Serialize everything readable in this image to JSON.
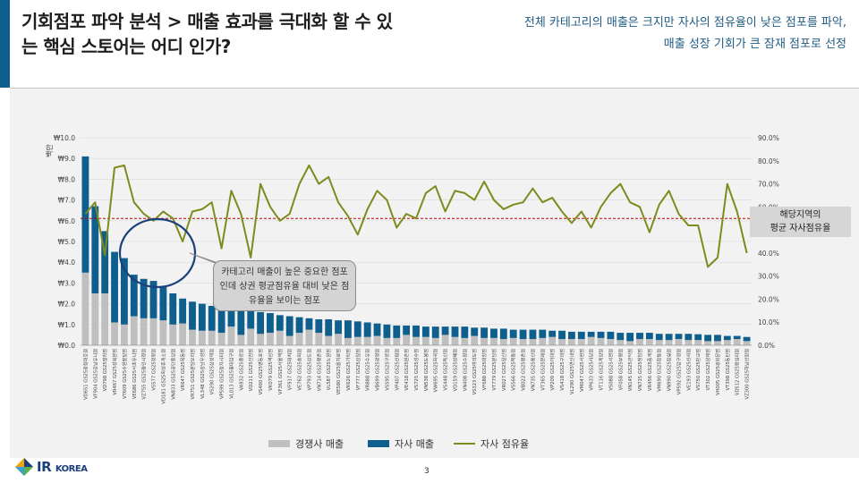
{
  "header": {
    "title": "기회점포 파악 분석 > 매출 효과를 극대화 할 수 있는 핵심 스토어는 어디 인가?",
    "subtitle_line1": "전체 카테고리의 매출은 크지만 자사의 점유율이 낮은 점포를 파악,",
    "subtitle_line2": "매출 성장 기회가 큰 잠재 점포로 선정"
  },
  "annotations": {
    "reference_label_line1": "해당지역의",
    "reference_label_line2": "평균 자사점유율",
    "callout_text": "카테고리 매출이 높은 중요한 점포인데 상권 평균점유율 대비 낮은 점유율을 보이는 점포"
  },
  "footer": {
    "logo_ir": "IR",
    "logo_korea": "KOREA",
    "page_number": "3"
  },
  "colors": {
    "competitor": "#bfbfbf",
    "own": "#0e5f8e",
    "share_line": "#7f8a1e",
    "reference": "#c00000",
    "header_accent": "#0d5f8f"
  },
  "chart_data": {
    "type": "bar",
    "stacked": true,
    "ylabel": "백만",
    "ylim": [
      0,
      10
    ],
    "y_ticks": [
      "₩0.0",
      "₩1.0",
      "₩2.0",
      "₩3.0",
      "₩4.0",
      "₩5.0",
      "₩6.0",
      "₩7.0",
      "₩8.0",
      "₩9.0",
      "₩10.0"
    ],
    "y2lim": [
      0,
      90
    ],
    "y2_ticks": [
      "0.0%",
      "10.0%",
      "20.0%",
      "30.0%",
      "40.0%",
      "50.0%",
      "60.0%",
      "70.0%",
      "80.0%",
      "90.0%"
    ],
    "reference_share": 55,
    "legend_position": "bottom",
    "categories": [
      "VD651 GS25광장대호점",
      "VF904 GS25강남유니점",
      "VD798 GS25빌라점",
      "VR467 GS25성북본점",
      "VT609 GS25수원팔달점",
      "VE686 GS25서초유니점",
      "VZ755 GS25용인시청점",
      "VS577 GS25정왕점",
      "VD181 GS25화성휴게소점",
      "VN833 GS25공단중앙점",
      "VR647 GS25목동점",
      "VR751 GS25분당오리점",
      "VL348 GS25강남우성점",
      "VS290 GS25삼성역점",
      "VP599 GS25장지시티점",
      "VL013 GS25홍대입구점",
      "VA932 GS25종로점",
      "VD211 GS25신천점",
      "VS460 GS25영등포점",
      "VK079 GS25역삼점",
      "VF361 GS25서울역점",
      "VF917 GS25대치점",
      "VE762 GS25송파점",
      "VP793 GS25상도점",
      "VN714 GS25평촌점",
      "VL587 GS25노원점",
      "VE580 GS25을지로점",
      "VK626 GS25가락점",
      "VF777 GS25상일점",
      "VR888 GS25수유점",
      "VB699 GS25광명점",
      "VS595 GS25구로점",
      "VP407 GS25신림점",
      "VE418 GS25원촌점",
      "VS725 GS25성수점",
      "VN538 GS25도봉점",
      "VW695 GS25화곡점",
      "VS448 GS25독산점",
      "VD159 GS25방배점",
      "VN408 GS25수원점",
      "VS323 GS25여의도점",
      "VF688 GS25대방점",
      "VT779 GS25분당점",
      "VR027 GS25일산점",
      "VS566 GS25목동점",
      "VB022 GS25평촌점",
      "VN735 GS25용산점",
      "VT365 GS25문래점",
      "VP209 GS25이대점",
      "VS418 GS25구의점",
      "VL290 GS25연신내점",
      "VM047 GS25서현점",
      "VP633 GS25사당점",
      "VT116 GS25계양점",
      "VS088 GS25서면점",
      "VF058 GS25부평점",
      "VN145 GS25관악점",
      "VN715 GS25청담점",
      "VR456 GS25중계점",
      "VM690 GS25창동점",
      "VN990 GS25잠실점",
      "VP592 GS25압구정점",
      "VE193 GS25신사점",
      "VS750 GS25판교점",
      "VT302 GS25양재점",
      "VH005 GS25광화문점",
      "VT398 GS25동탄점",
      "VD512 GS25왕십리점",
      "VZ300 GS25하남신장점"
    ],
    "series": [
      {
        "name": "경쟁사 매출",
        "values": [
          3.5,
          2.5,
          2.5,
          1.1,
          1.0,
          1.4,
          1.3,
          1.3,
          1.2,
          1.0,
          1.05,
          0.75,
          0.7,
          0.7,
          0.6,
          0.9,
          0.5,
          0.8,
          0.55,
          0.6,
          0.7,
          0.45,
          0.6,
          0.75,
          0.6,
          0.45,
          0.55,
          0.35,
          0.4,
          0.4,
          0.45,
          0.35,
          0.35,
          0.5,
          0.4,
          0.4,
          0.35,
          0.5,
          0.4,
          0.35,
          0.45,
          0.35,
          0.35,
          0.3,
          0.35,
          0.3,
          0.3,
          0.35,
          0.4,
          0.3,
          0.3,
          0.3,
          0.4,
          0.35,
          0.3,
          0.25,
          0.2,
          0.3,
          0.3,
          0.25,
          0.25,
          0.3,
          0.25,
          0.25,
          0.2,
          0.2,
          0.25,
          0.3,
          0.2
        ]
      },
      {
        "name": "자사 매출",
        "values": [
          5.6,
          4.2,
          3.0,
          3.4,
          3.2,
          2.0,
          1.9,
          1.8,
          1.6,
          1.5,
          1.2,
          1.35,
          1.3,
          1.2,
          1.25,
          0.85,
          1.2,
          0.85,
          1.05,
          0.95,
          0.75,
          0.95,
          0.75,
          0.55,
          0.65,
          0.8,
          0.65,
          0.85,
          0.75,
          0.7,
          0.6,
          0.65,
          0.6,
          0.45,
          0.55,
          0.5,
          0.55,
          0.4,
          0.5,
          0.55,
          0.4,
          0.5,
          0.45,
          0.5,
          0.4,
          0.45,
          0.45,
          0.4,
          0.3,
          0.4,
          0.35,
          0.35,
          0.25,
          0.3,
          0.35,
          0.35,
          0.4,
          0.3,
          0.3,
          0.3,
          0.3,
          0.25,
          0.3,
          0.28,
          0.3,
          0.3,
          0.2,
          0.15,
          0.2
        ]
      },
      {
        "name": "자사 점유율",
        "axis": "secondary",
        "values": [
          57,
          62,
          39,
          77,
          78,
          62,
          57,
          54,
          58,
          55,
          45,
          58,
          59,
          62,
          42,
          67,
          57,
          38,
          70,
          60,
          54,
          57,
          70,
          78,
          70,
          73,
          62,
          56,
          48,
          59,
          67,
          63,
          51,
          57,
          55,
          66,
          69,
          58,
          67,
          66,
          63,
          71,
          63,
          59,
          61,
          62,
          68,
          62,
          64,
          58,
          53,
          58,
          51,
          60,
          66,
          70,
          62,
          60,
          49,
          61,
          67,
          57,
          52,
          52,
          34,
          38,
          70,
          58,
          40
        ]
      }
    ]
  }
}
